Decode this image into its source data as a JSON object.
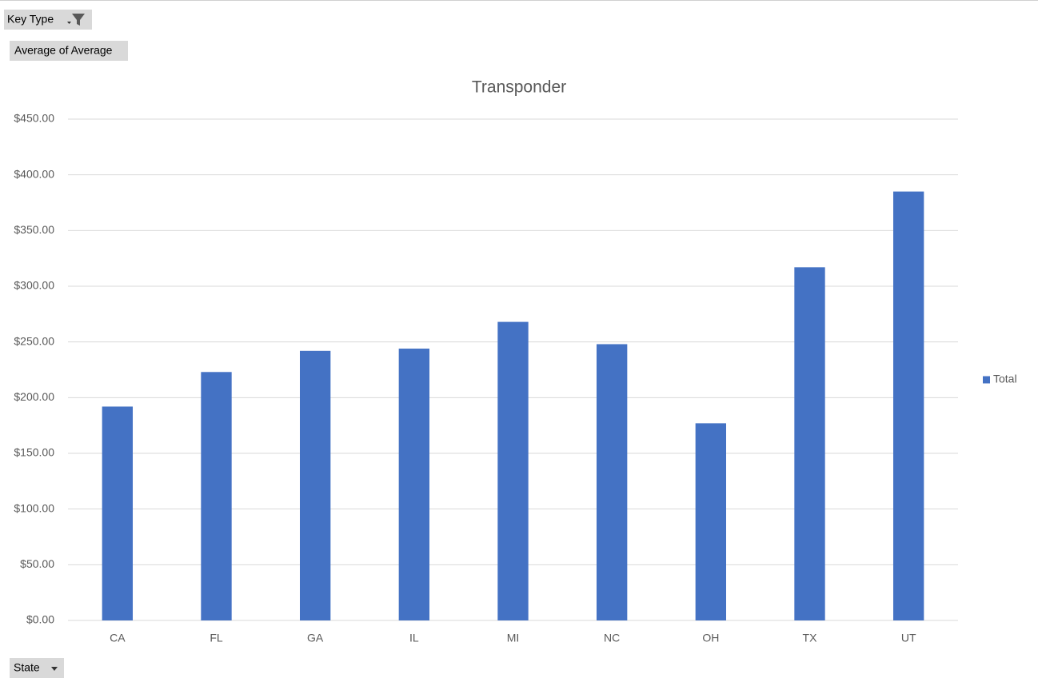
{
  "pivot_buttons": {
    "filter": "Key Type",
    "values": "Average of Average",
    "axis": "State"
  },
  "chart_data": {
    "type": "bar",
    "title": "Transponder",
    "categories": [
      "CA",
      "FL",
      "GA",
      "IL",
      "MI",
      "NC",
      "OH",
      "TX",
      "UT"
    ],
    "series": [
      {
        "name": "Total",
        "color": "#4472c4",
        "values": [
          192,
          223,
          242,
          244,
          268,
          248,
          177,
          317,
          385
        ]
      }
    ],
    "ylim": [
      0,
      450
    ],
    "yticks": [
      {
        "value": 0,
        "label": "$0.00"
      },
      {
        "value": 50,
        "label": "$50.00"
      },
      {
        "value": 100,
        "label": "$100.00"
      },
      {
        "value": 150,
        "label": "$150.00"
      },
      {
        "value": 200,
        "label": "$200.00"
      },
      {
        "value": 250,
        "label": "$250.00"
      },
      {
        "value": 300,
        "label": "$300.00"
      },
      {
        "value": 350,
        "label": "$350.00"
      },
      {
        "value": 400,
        "label": "$400.00"
      },
      {
        "value": 450,
        "label": "$450.00"
      }
    ],
    "grid": true,
    "legend": "right"
  }
}
